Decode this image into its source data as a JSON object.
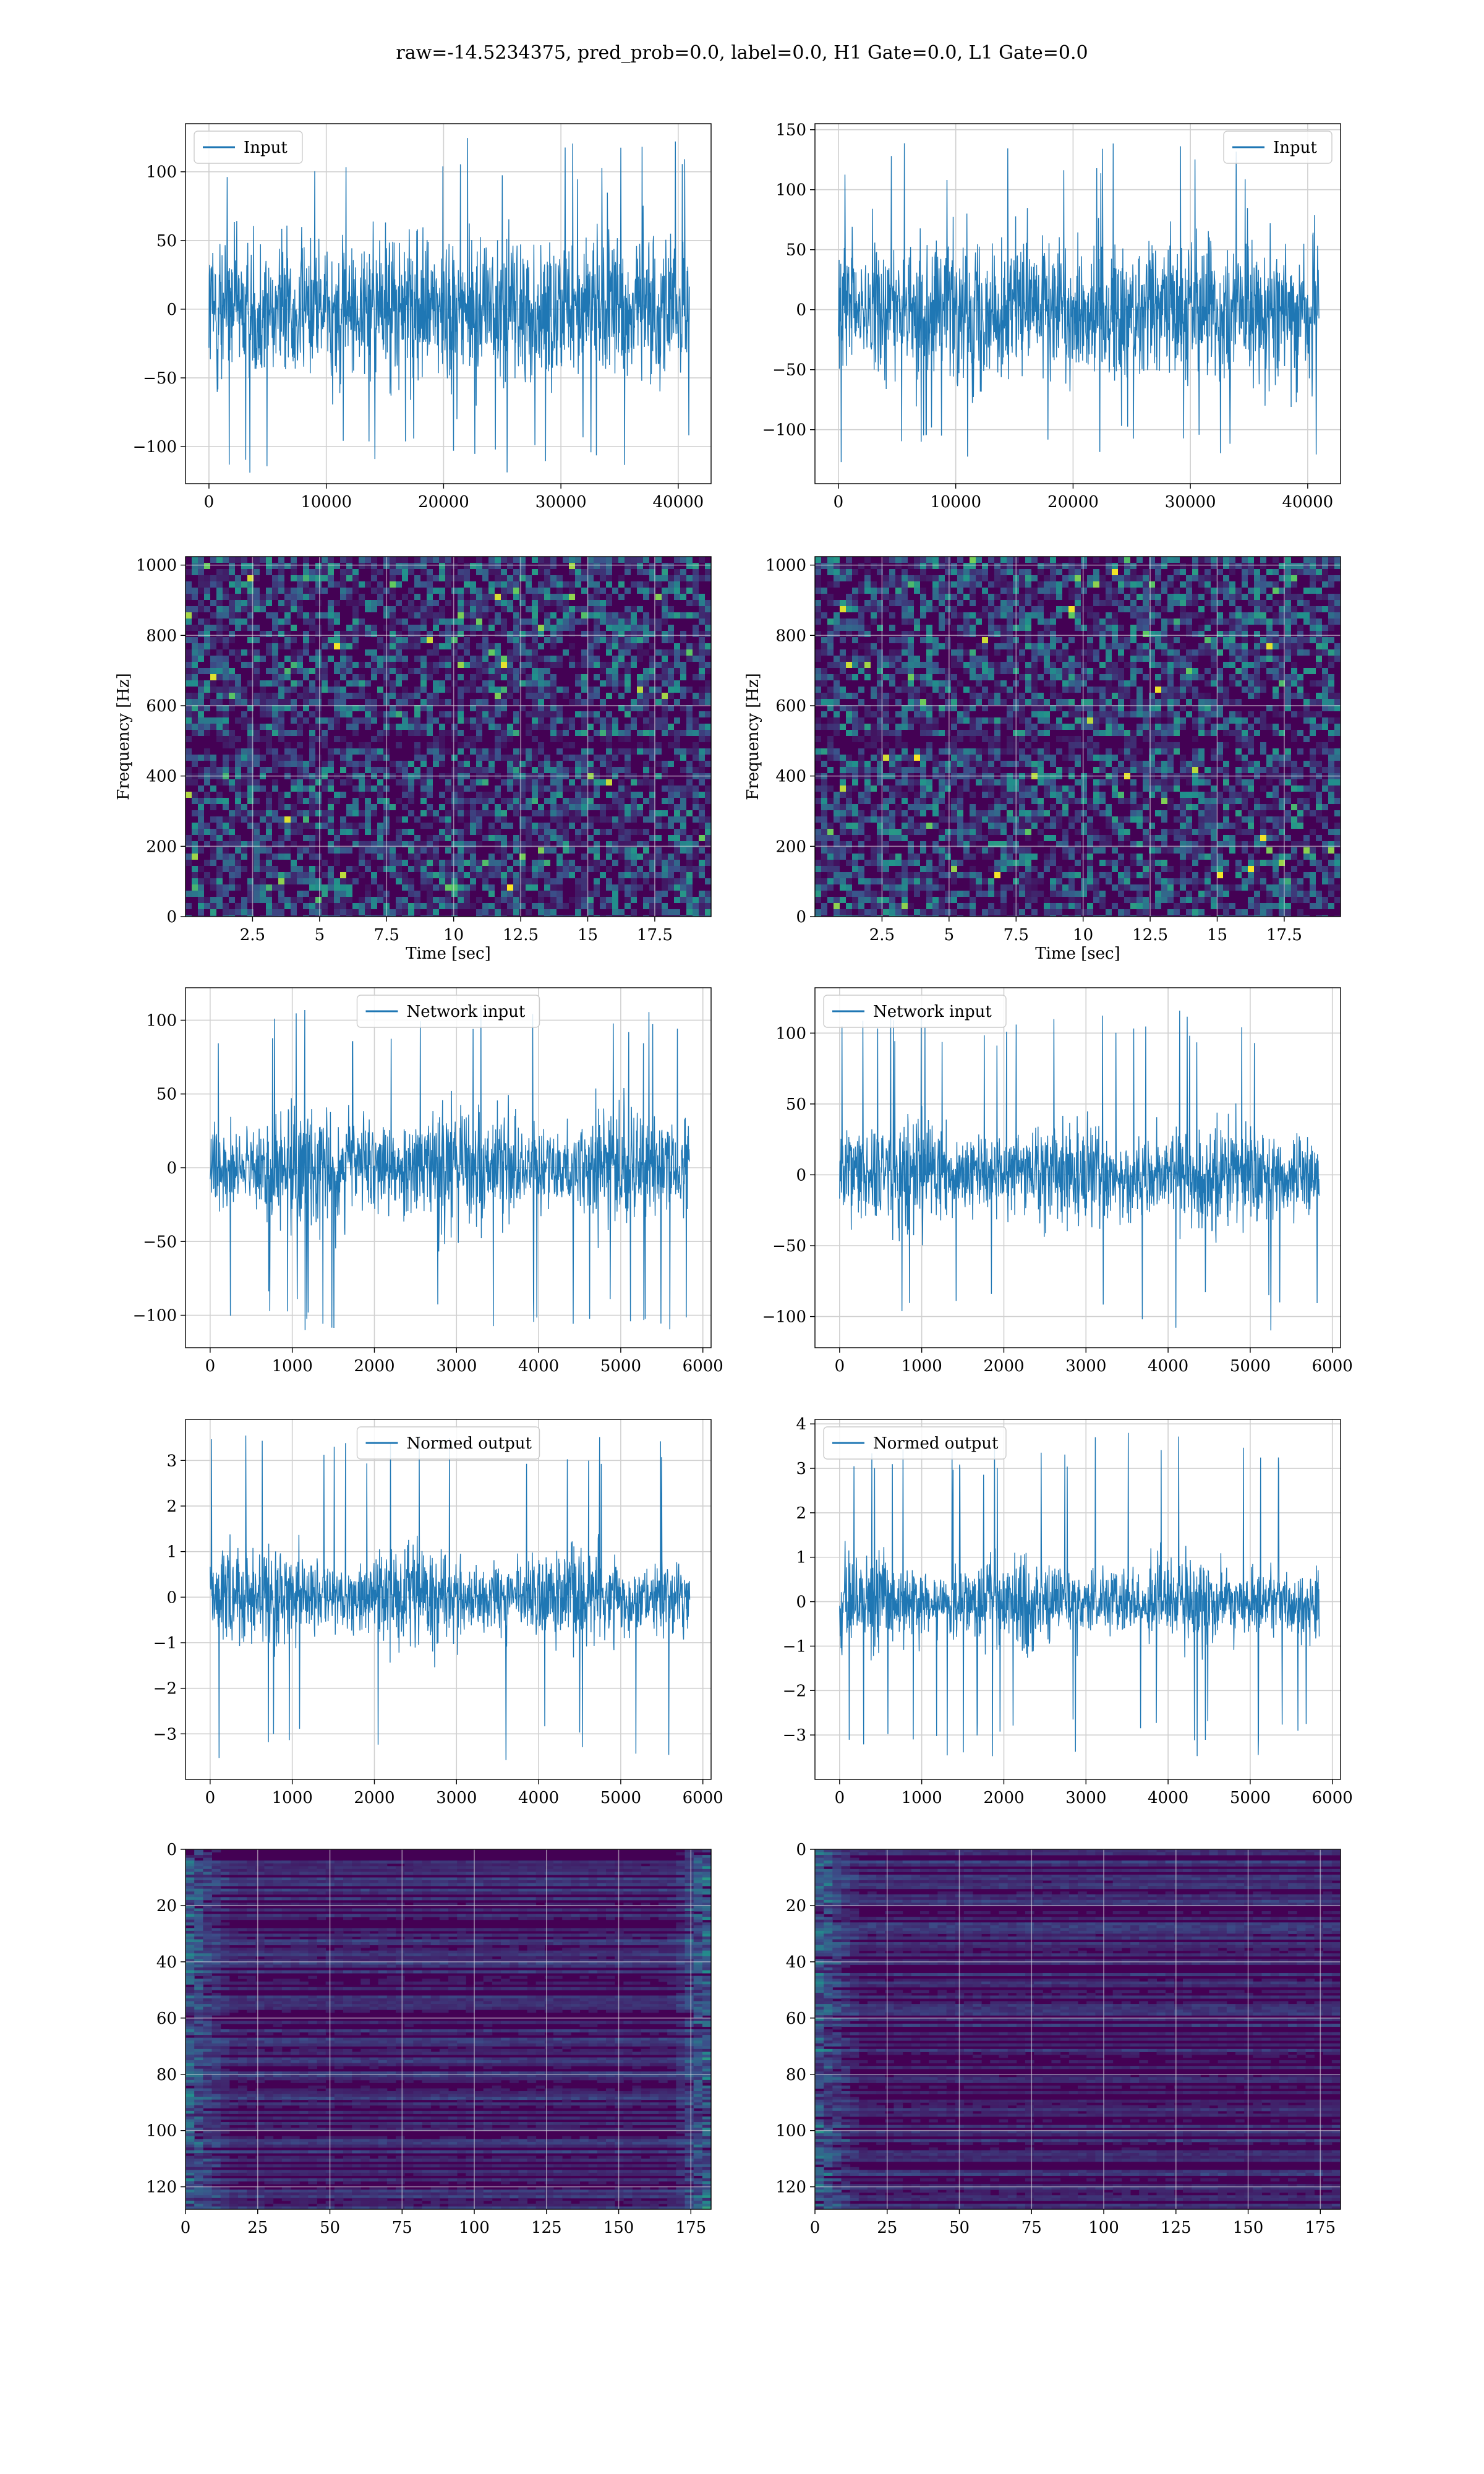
{
  "figure_title": "raw=-14.5234375, pred_prob=0.0, label=0.0, H1 Gate=0.0, L1 Gate=0.0",
  "colors": {
    "line": "#1f77b4",
    "grid": "#d0d0d0",
    "viridis_low": "#440154",
    "viridis_mid": "#21918c",
    "viridis_high": "#fde725"
  },
  "chart_data": [
    {
      "id": "input-h1",
      "type": "line",
      "row": 0,
      "col": 0,
      "legend": "Input",
      "legend_loc": "upper-left",
      "xlim": [
        -2000,
        42800
      ],
      "ylim": [
        -127,
        135
      ],
      "xticks": [
        0,
        10000,
        20000,
        30000,
        40000
      ],
      "yticks": [
        -100,
        -50,
        0,
        50,
        100
      ],
      "xlabel": "",
      "ylabel": "",
      "series": {
        "x_range": [
          0,
          40960
        ],
        "band": [
          -80,
          75
        ],
        "spike_extremes": [
          -122,
          126
        ],
        "envelope": "flat"
      }
    },
    {
      "id": "input-l1",
      "type": "line",
      "row": 0,
      "col": 1,
      "legend": "Input",
      "legend_loc": "upper-right",
      "xlim": [
        -2000,
        42800
      ],
      "ylim": [
        -145,
        155
      ],
      "xticks": [
        0,
        10000,
        20000,
        30000,
        40000
      ],
      "yticks": [
        -100,
        -50,
        0,
        50,
        100,
        150
      ],
      "xlabel": "",
      "ylabel": "",
      "series": {
        "x_range": [
          0,
          40960
        ],
        "band": [
          -85,
          85
        ],
        "spike_extremes": [
          -128,
          140
        ],
        "envelope": "flat"
      }
    },
    {
      "id": "spectrogram-h1",
      "type": "heatmap",
      "row": 1,
      "col": 0,
      "xlim": [
        0,
        19.6
      ],
      "ylim": [
        0,
        1024
      ],
      "xticks": [
        2.5,
        5.0,
        7.5,
        10.0,
        12.5,
        15.0,
        17.5
      ],
      "yticks": [
        0,
        200,
        400,
        600,
        800,
        1000
      ],
      "xlabel": "Time [sec]",
      "ylabel": "Frequency [Hz]",
      "heat": {
        "mode": "speckle",
        "dark_band_y": [
          480,
          520
        ]
      }
    },
    {
      "id": "spectrogram-l1",
      "type": "heatmap",
      "row": 1,
      "col": 1,
      "xlim": [
        0,
        19.6
      ],
      "ylim": [
        0,
        1024
      ],
      "xticks": [
        2.5,
        5.0,
        7.5,
        10.0,
        12.5,
        15.0,
        17.5
      ],
      "yticks": [
        0,
        200,
        400,
        600,
        800,
        1000
      ],
      "xlabel": "Time [sec]",
      "ylabel": "Frequency [Hz]",
      "heat": {
        "mode": "speckle",
        "dark_band_y": [
          480,
          520
        ]
      }
    },
    {
      "id": "network-input-h1",
      "type": "line",
      "row": 2,
      "col": 0,
      "legend": "Network input",
      "legend_loc": "upper-center",
      "xlim": [
        -300,
        6100
      ],
      "ylim": [
        -122,
        122
      ],
      "xticks": [
        0,
        1000,
        2000,
        3000,
        4000,
        5000,
        6000
      ],
      "yticks": [
        -100,
        -50,
        0,
        50,
        100
      ],
      "xlabel": "",
      "ylabel": "",
      "series": {
        "x_range": [
          0,
          5840
        ],
        "band": [
          -60,
          60
        ],
        "spike_extremes": [
          -110,
          112
        ],
        "envelope": "wavy"
      }
    },
    {
      "id": "network-input-l1",
      "type": "line",
      "row": 2,
      "col": 1,
      "legend": "Network input",
      "legend_loc": "upper-left",
      "xlim": [
        -300,
        6100
      ],
      "ylim": [
        -122,
        132
      ],
      "xticks": [
        0,
        1000,
        2000,
        3000,
        4000,
        5000,
        6000
      ],
      "yticks": [
        -100,
        -50,
        0,
        50,
        100
      ],
      "xlabel": "",
      "ylabel": "",
      "series": {
        "x_range": [
          0,
          5840
        ],
        "band": [
          -55,
          55
        ],
        "spike_extremes": [
          -110,
          120
        ],
        "envelope": "wavy"
      }
    },
    {
      "id": "normed-output-h1",
      "type": "line",
      "row": 3,
      "col": 0,
      "legend": "Normed output",
      "legend_loc": "upper-center",
      "xlim": [
        -300,
        6100
      ],
      "ylim": [
        -4.0,
        3.9
      ],
      "xticks": [
        0,
        1000,
        2000,
        3000,
        4000,
        5000,
        6000
      ],
      "yticks": [
        -3,
        -2,
        -1,
        0,
        1,
        2,
        3
      ],
      "xlabel": "",
      "ylabel": "",
      "series": {
        "x_range": [
          0,
          5840
        ],
        "band": [
          -1.6,
          1.6
        ],
        "spike_extremes": [
          -3.6,
          3.6
        ],
        "envelope": "wavy"
      }
    },
    {
      "id": "normed-output-l1",
      "type": "line",
      "row": 3,
      "col": 1,
      "legend": "Normed output",
      "legend_loc": "upper-left",
      "xlim": [
        -300,
        6100
      ],
      "ylim": [
        -4.0,
        4.1
      ],
      "xticks": [
        0,
        1000,
        2000,
        3000,
        4000,
        5000,
        6000
      ],
      "yticks": [
        -3,
        -2,
        -1,
        0,
        1,
        2,
        3,
        4
      ],
      "xlabel": "",
      "ylabel": "",
      "series": {
        "x_range": [
          0,
          5840
        ],
        "band": [
          -1.5,
          1.5
        ],
        "spike_extremes": [
          -3.5,
          3.8
        ],
        "envelope": "wavy"
      }
    },
    {
      "id": "feature-map-h1",
      "type": "heatmap",
      "row": 4,
      "col": 0,
      "xlim": [
        0,
        182
      ],
      "ylim": [
        128,
        0
      ],
      "xticks": [
        0,
        25,
        50,
        75,
        100,
        125,
        150,
        175
      ],
      "yticks": [
        0,
        20,
        40,
        60,
        80,
        100,
        120
      ],
      "xlabel": "",
      "ylabel": "",
      "heat": {
        "mode": "streaks",
        "rows": 128,
        "bright_edges": "both"
      }
    },
    {
      "id": "feature-map-l1",
      "type": "heatmap",
      "row": 4,
      "col": 1,
      "xlim": [
        0,
        182
      ],
      "ylim": [
        128,
        0
      ],
      "xticks": [
        0,
        25,
        50,
        75,
        100,
        125,
        150,
        175
      ],
      "yticks": [
        0,
        20,
        40,
        60,
        80,
        100,
        120
      ],
      "xlabel": "",
      "ylabel": "",
      "heat": {
        "mode": "streaks",
        "rows": 128,
        "bright_edges": "left"
      }
    }
  ]
}
